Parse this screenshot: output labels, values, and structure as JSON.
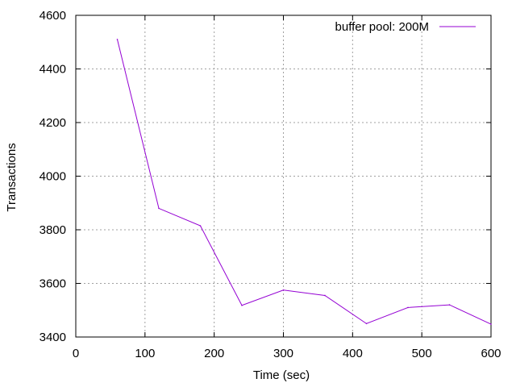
{
  "chart_data": {
    "type": "line",
    "title": "",
    "xlabel": "Time (sec)",
    "ylabel": "Transactions",
    "xlim": [
      0,
      600
    ],
    "ylim": [
      3400,
      4600
    ],
    "xticks": [
      0,
      100,
      200,
      300,
      400,
      500,
      600
    ],
    "yticks": [
      3400,
      3600,
      3800,
      4000,
      4200,
      4400,
      4600
    ],
    "grid": true,
    "legend_position": "top-right",
    "series": [
      {
        "name": "buffer pool: 200M",
        "color": "#9400d3",
        "x": [
          60,
          120,
          180,
          240,
          300,
          360,
          420,
          480,
          540,
          600
        ],
        "y": [
          4510,
          3880,
          3815,
          3518,
          3575,
          3555,
          3450,
          3510,
          3520,
          3448
        ]
      }
    ]
  }
}
